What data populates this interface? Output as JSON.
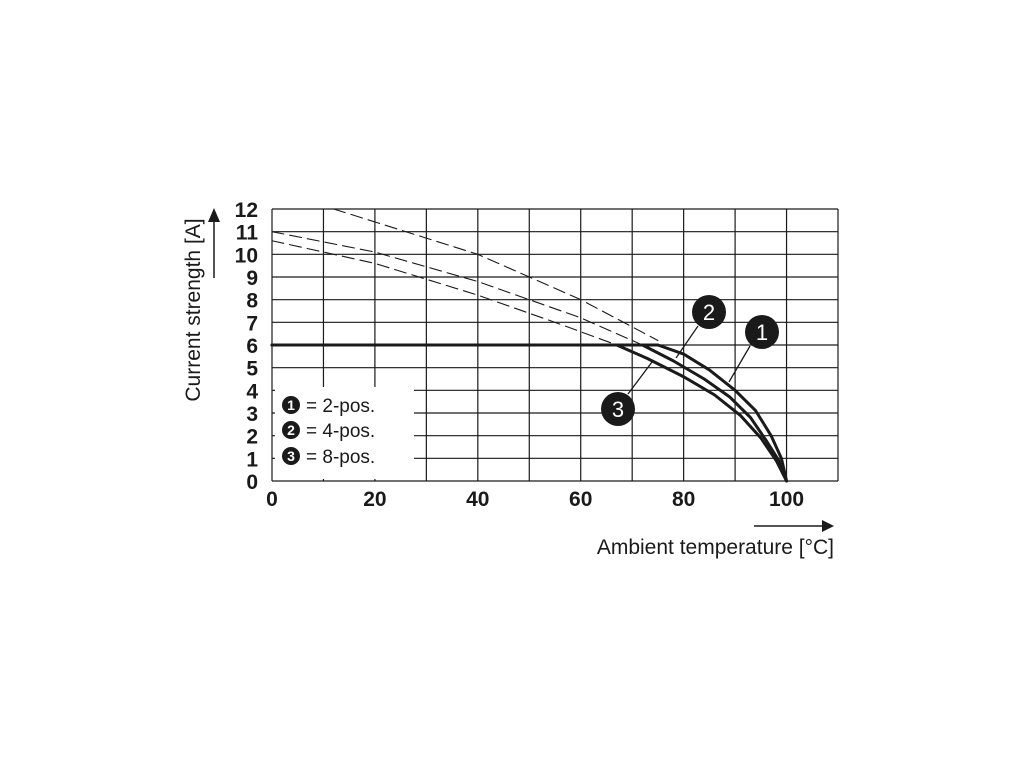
{
  "chart_data": {
    "type": "line",
    "xlabel": "Ambient temperature [°C]",
    "ylabel": "Current strength [A]",
    "xlim": [
      0,
      110
    ],
    "ylim": [
      0,
      12
    ],
    "x_ticks": [
      "0",
      "20",
      "40",
      "60",
      "80",
      "100"
    ],
    "y_ticks": [
      "0",
      "1",
      "2",
      "3",
      "4",
      "5",
      "6",
      "7",
      "8",
      "9",
      "10",
      "11",
      "12"
    ],
    "grid": true,
    "legend_position": "bottom-left",
    "legend": [
      {
        "marker": "1",
        "label": "= 2-pos."
      },
      {
        "marker": "2",
        "label": "= 4-pos."
      },
      {
        "marker": "3",
        "label": "= 8-pos."
      }
    ],
    "series": [
      {
        "marker": "1",
        "style": "solid",
        "x": [
          0,
          75,
          80,
          85,
          90,
          94,
          97,
          99,
          100
        ],
        "y": [
          6,
          6,
          5.6,
          4.9,
          4.0,
          3.1,
          2.0,
          1.0,
          0
        ]
      },
      {
        "marker": "2",
        "style": "solid",
        "x": [
          0,
          72,
          78,
          84,
          89,
          93,
          96,
          98.5,
          100
        ],
        "y": [
          6,
          6,
          5.3,
          4.5,
          3.7,
          2.8,
          1.8,
          0.9,
          0
        ]
      },
      {
        "marker": "3",
        "style": "solid",
        "x": [
          0,
          67,
          73,
          80,
          86,
          91,
          95,
          98,
          100
        ],
        "y": [
          6,
          6,
          5.4,
          4.6,
          3.8,
          2.9,
          1.9,
          0.9,
          0
        ]
      },
      {
        "marker": "1",
        "style": "dashed",
        "x": [
          12,
          40,
          60,
          75
        ],
        "y": [
          12,
          10.0,
          8.0,
          6.2
        ]
      },
      {
        "marker": "2",
        "style": "dashed",
        "x": [
          0,
          20,
          40,
          60,
          72
        ],
        "y": [
          11.0,
          10.1,
          8.8,
          7.2,
          6.0
        ]
      },
      {
        "marker": "3",
        "style": "dashed",
        "x": [
          0,
          20,
          40,
          55,
          67
        ],
        "y": [
          10.6,
          9.6,
          8.2,
          7.0,
          6.0
        ]
      }
    ]
  }
}
